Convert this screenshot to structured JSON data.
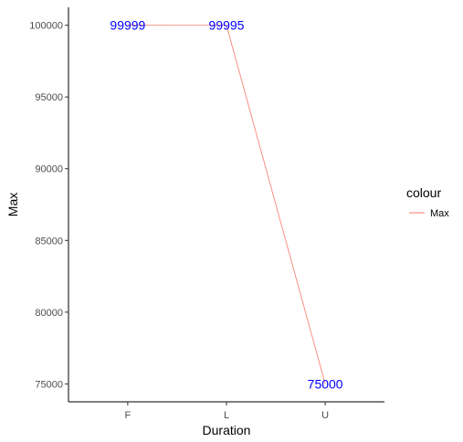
{
  "chart_data": {
    "type": "line",
    "categories": [
      "F",
      "L",
      "U"
    ],
    "series": [
      {
        "name": "Max",
        "values": [
          99999,
          99995,
          75000
        ],
        "color": "#F8766D"
      }
    ],
    "data_labels": [
      "99999",
      "99995",
      "75000"
    ],
    "data_label_color": "#0000FF",
    "xlabel": "Duration",
    "ylabel": "Max",
    "yticks": [
      75000,
      80000,
      85000,
      90000,
      95000,
      100000
    ],
    "ytick_labels": [
      "75000",
      "80000",
      "85000",
      "90000",
      "95000",
      "100000"
    ],
    "ylim": [
      73750,
      101250
    ],
    "grid": false,
    "legend": {
      "title": "colour",
      "position": "right",
      "entries": [
        "Max"
      ]
    }
  }
}
